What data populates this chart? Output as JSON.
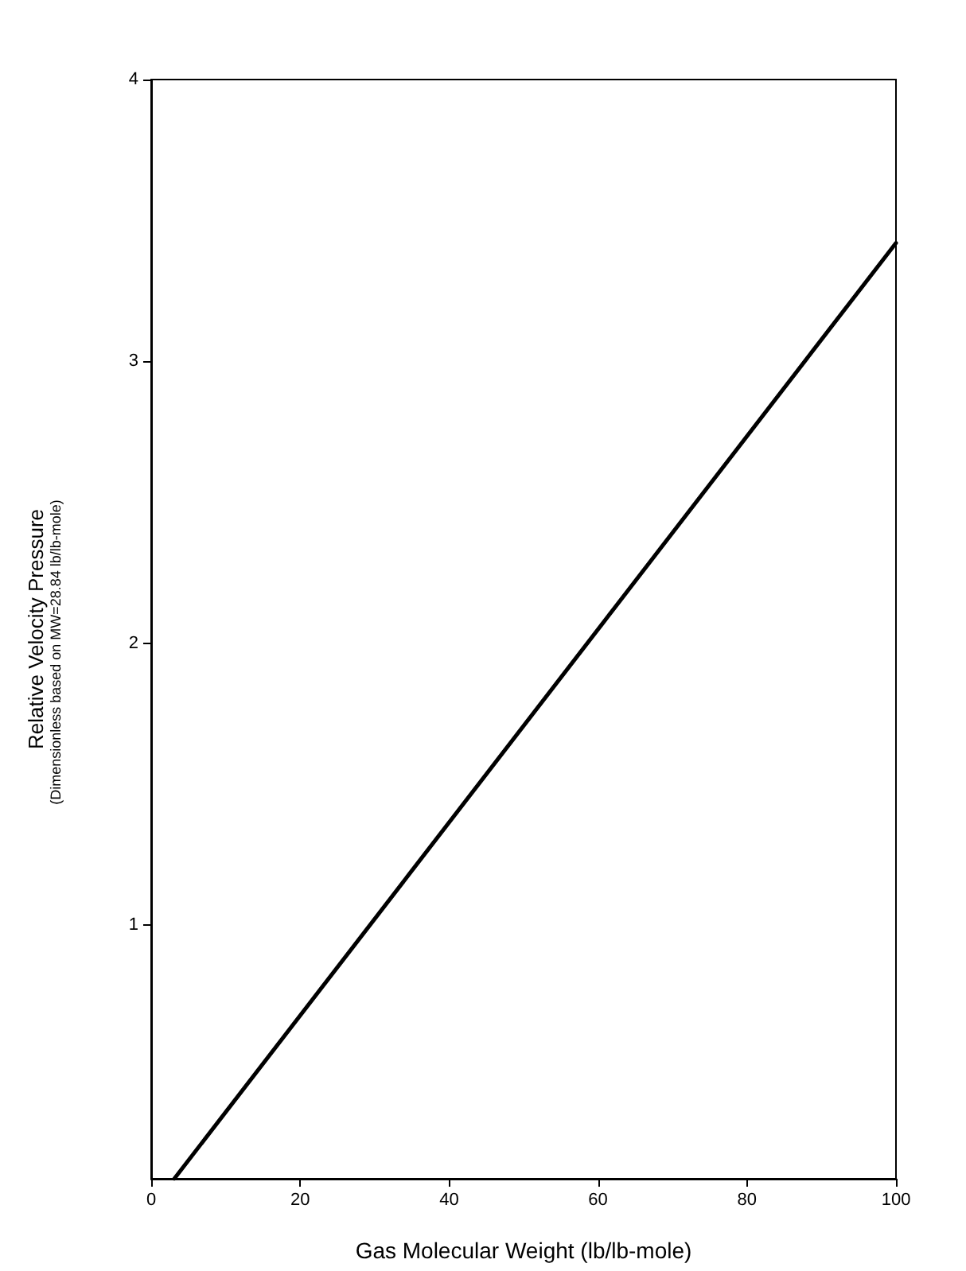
{
  "chart_data": {
    "type": "line",
    "xlabel": "Gas Molecular Weight (lb/lb-mole)",
    "ylabel": "Relative Velocity Pressure",
    "annotations": [
      "(Dimensionless based on MW=28.84 lb/lb-mole)"
    ],
    "series": [
      {
        "color": "#000000",
        "x": [
          3.1,
          100
        ],
        "values": [
          0.1,
          3.42
        ]
      }
    ],
    "xlim": [
      0,
      100
    ],
    "xticks": [
      0,
      20,
      40,
      60,
      80,
      100
    ],
    "ylim": [
      0.1,
      4
    ],
    "yticks": [
      1,
      2,
      3,
      4
    ],
    "marker": "none",
    "line_style": "solid"
  }
}
